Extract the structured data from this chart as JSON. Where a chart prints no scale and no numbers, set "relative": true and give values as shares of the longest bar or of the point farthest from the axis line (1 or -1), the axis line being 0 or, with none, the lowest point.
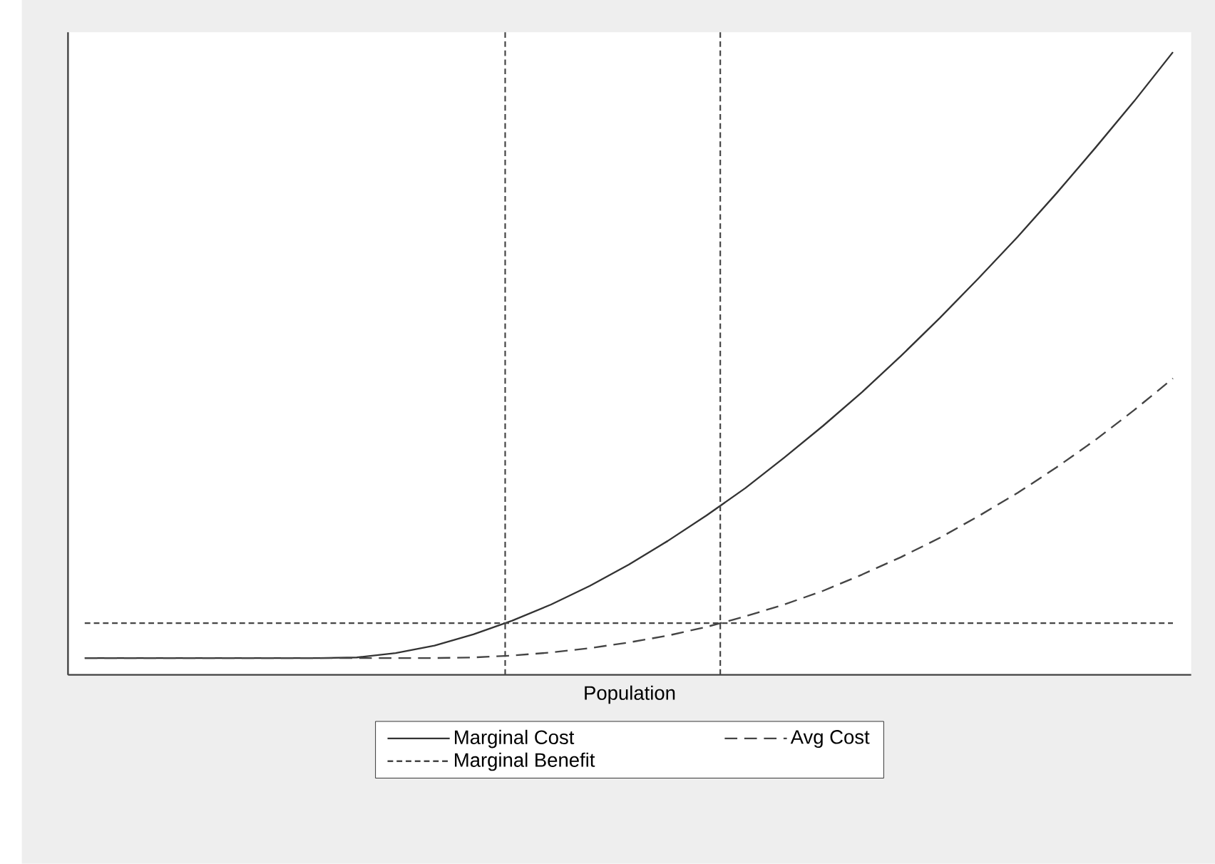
{
  "chart_data": {
    "type": "line",
    "relative": true,
    "xlabel": "Population",
    "legend": "bottom",
    "categories": [
      null,
      null,
      null,
      null,
      null,
      null,
      null,
      null,
      null,
      null,
      null,
      null,
      null,
      null,
      null,
      null,
      null,
      null,
      null,
      null,
      null,
      null,
      null,
      null,
      null,
      null,
      null,
      null,
      null
    ],
    "series": [
      {
        "name": "Marginal Cost",
        "color": "#333333",
        "line_style": "solid",
        "values": [
          0.027,
          0.027,
          0.027,
          0.027,
          0.027,
          0.027,
          0.027,
          0.028,
          0.035,
          0.047,
          0.065,
          0.087,
          0.113,
          0.143,
          0.177,
          0.215,
          0.256,
          0.3,
          0.349,
          0.4,
          0.454,
          0.512,
          0.573,
          0.637,
          0.703,
          0.773,
          0.846,
          0.921,
          1.0
        ]
      },
      {
        "name": "Avg Cost",
        "color": "#444444",
        "line_style": "dashed",
        "values": [
          0.027,
          0.027,
          0.027,
          0.027,
          0.027,
          0.027,
          0.027,
          0.027,
          0.027,
          0.027,
          0.028,
          0.031,
          0.036,
          0.043,
          0.052,
          0.063,
          0.077,
          0.094,
          0.113,
          0.135,
          0.161,
          0.189,
          0.22,
          0.255,
          0.292,
          0.333,
          0.377,
          0.425,
          0.476
        ]
      },
      {
        "name": "Marginal Benefit",
        "color": "#444444",
        "line_style": "dotted",
        "values": [
          0.083,
          0.083,
          0.083,
          0.083,
          0.083,
          0.083,
          0.083,
          0.083,
          0.083,
          0.083,
          0.083,
          0.083,
          0.083,
          0.083,
          0.083,
          0.083,
          0.083,
          0.083,
          0.083,
          0.083,
          0.083,
          0.083,
          0.083,
          0.083,
          0.083,
          0.083,
          0.083,
          0.083,
          0.083
        ]
      }
    ]
  }
}
